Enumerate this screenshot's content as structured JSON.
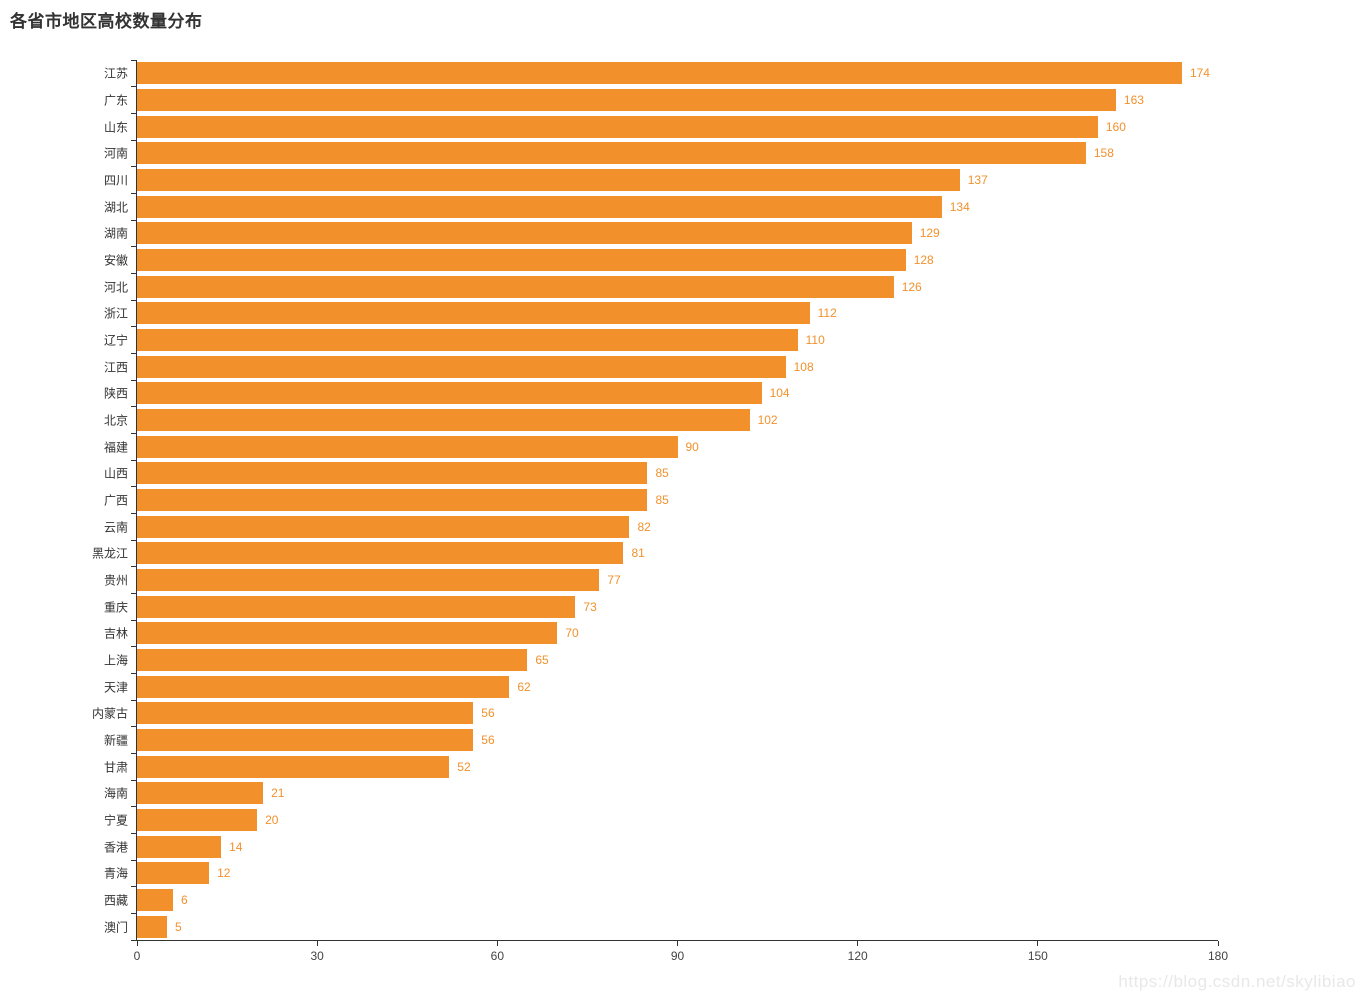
{
  "title": "各省市地区高校数量分布",
  "watermark": "https://blog.csdn.net/skylibiao",
  "colors": {
    "bar": "#F2912C",
    "value_label": "#F2912C",
    "axis": "#333333",
    "title": "#333333",
    "watermark": "#E8E8E8"
  },
  "chart_data": {
    "type": "bar",
    "orientation": "horizontal",
    "title": "各省市地区高校数量分布",
    "categories": [
      "江苏",
      "广东",
      "山东",
      "河南",
      "四川",
      "湖北",
      "湖南",
      "安徽",
      "河北",
      "浙江",
      "辽宁",
      "江西",
      "陕西",
      "北京",
      "福建",
      "山西",
      "广西",
      "云南",
      "黑龙江",
      "贵州",
      "重庆",
      "吉林",
      "上海",
      "天津",
      "内蒙古",
      "新疆",
      "甘肃",
      "海南",
      "宁夏",
      "香港",
      "青海",
      "西藏",
      "澳门"
    ],
    "values": [
      174,
      163,
      160,
      158,
      137,
      134,
      129,
      128,
      126,
      112,
      110,
      108,
      104,
      102,
      90,
      85,
      85,
      82,
      81,
      77,
      73,
      70,
      65,
      62,
      56,
      56,
      52,
      21,
      20,
      14,
      12,
      6,
      5
    ],
    "xlabel": "",
    "ylabel": "",
    "xlim": [
      0,
      180
    ],
    "x_ticks": [
      0,
      30,
      60,
      90,
      120,
      150,
      180
    ],
    "grid": false,
    "legend": false,
    "value_labels": true
  }
}
